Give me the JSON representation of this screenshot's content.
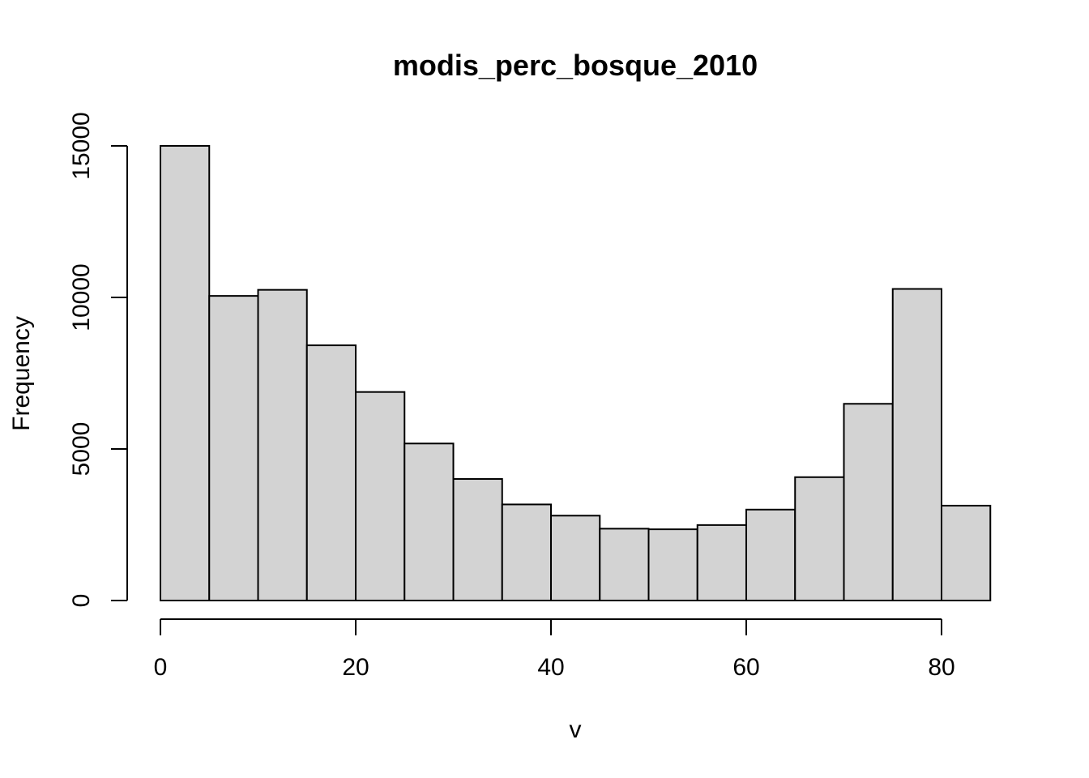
{
  "chart_data": {
    "type": "bar",
    "title": "modis_perc_bosque_2010",
    "xlabel": "v",
    "ylabel": "Frequency",
    "bar_color": "#d3d3d3",
    "bin_width": 5,
    "xlim": [
      0,
      85
    ],
    "ylim": [
      0,
      15000
    ],
    "x_ticks": [
      0,
      20,
      40,
      60,
      80
    ],
    "y_ticks": [
      0,
      5000,
      10000,
      15000
    ],
    "x_tick_labels": [
      "0",
      "20",
      "40",
      "60",
      "80"
    ],
    "y_tick_labels": [
      "0",
      "5000",
      "10000",
      "15000"
    ],
    "bins": [
      {
        "start": 0,
        "end": 5,
        "value": 15000
      },
      {
        "start": 5,
        "end": 10,
        "value": 10050
      },
      {
        "start": 10,
        "end": 15,
        "value": 10250
      },
      {
        "start": 15,
        "end": 20,
        "value": 8420
      },
      {
        "start": 20,
        "end": 25,
        "value": 6880
      },
      {
        "start": 25,
        "end": 30,
        "value": 5180
      },
      {
        "start": 30,
        "end": 35,
        "value": 4010
      },
      {
        "start": 35,
        "end": 40,
        "value": 3170
      },
      {
        "start": 40,
        "end": 45,
        "value": 2800
      },
      {
        "start": 45,
        "end": 50,
        "value": 2370
      },
      {
        "start": 50,
        "end": 55,
        "value": 2350
      },
      {
        "start": 55,
        "end": 60,
        "value": 2490
      },
      {
        "start": 60,
        "end": 65,
        "value": 3000
      },
      {
        "start": 65,
        "end": 70,
        "value": 4070
      },
      {
        "start": 70,
        "end": 75,
        "value": 6490
      },
      {
        "start": 75,
        "end": 80,
        "value": 10280
      },
      {
        "start": 80,
        "end": 85,
        "value": 3130
      }
    ]
  }
}
